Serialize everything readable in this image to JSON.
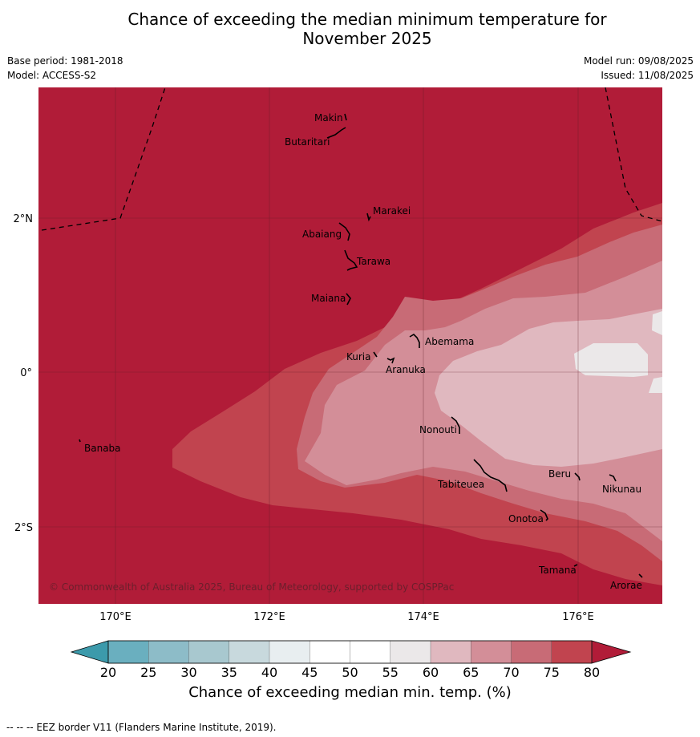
{
  "title_line1": "Chance of exceeding the median minimum temperature for",
  "title_line2": "November 2025",
  "meta_left": {
    "base_period": "Base period: 1981-2018",
    "model": "Model: ACCESS-S2"
  },
  "meta_right": {
    "model_run": "Model run: 09/08/2025",
    "issued": "Issued: 11/08/2025"
  },
  "map": {
    "lon_labels": [
      "170°E",
      "172°E",
      "174°E",
      "176°E"
    ],
    "lat_labels": [
      "2°N",
      "0°",
      "2°S"
    ],
    "islands": [
      {
        "name": "Makin"
      },
      {
        "name": "Butaritari"
      },
      {
        "name": "Marakei"
      },
      {
        "name": "Abaiang"
      },
      {
        "name": "Tarawa"
      },
      {
        "name": "Maiana"
      },
      {
        "name": "Abemama"
      },
      {
        "name": "Kuria"
      },
      {
        "name": "Aranuka"
      },
      {
        "name": "Nonouti"
      },
      {
        "name": "Banaba"
      },
      {
        "name": "Tabiteuea"
      },
      {
        "name": "Beru"
      },
      {
        "name": "Nikunau"
      },
      {
        "name": "Onotoa"
      },
      {
        "name": "Tamana"
      },
      {
        "name": "Arorae"
      }
    ],
    "copyright": "© Commonwealth of Australia 2025, Bureau of Meteorology, supported by COSPPac"
  },
  "colorbar": {
    "ticks": [
      "20",
      "25",
      "30",
      "35",
      "40",
      "45",
      "50",
      "55",
      "60",
      "65",
      "70",
      "75",
      "80"
    ],
    "colors": {
      "below_20": "#3c9aab",
      "20_25": "#6aafbf",
      "25_30": "#8dbcc8",
      "30_35": "#a8c8cf",
      "35_40": "#c8d9dd",
      "40_45": "#e8eef0",
      "45_50": "#ffffff",
      "50_55": "#ffffff",
      "55_60": "#ebe8e9",
      "60_65": "#e0b8bf",
      "65_70": "#d38e98",
      "70_75": "#c86b76",
      "75_80": "#c1444f",
      "above_80": "#b11c38"
    },
    "label": "Chance of exceeding median min. temp. (%)"
  },
  "footer": "--  --  -- EEZ border V11 (Flanders Marine Institute, 2019)."
}
